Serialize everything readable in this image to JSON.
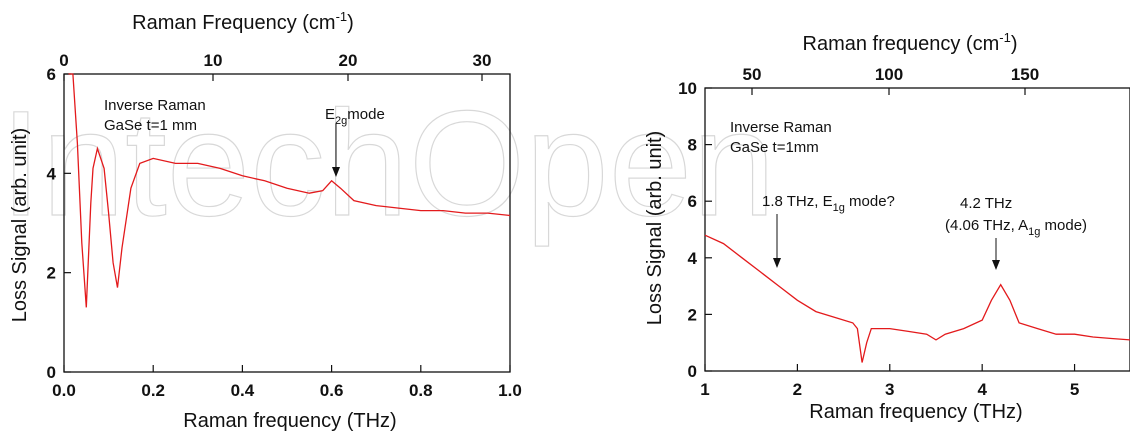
{
  "watermark": "IntechOpen",
  "chart_data": [
    {
      "type": "line",
      "xlabel": "Raman frequency (THz)",
      "ylabel": "Loss Signal (arb. unit)",
      "top_axis_label": "Raman Frequency (cm",
      "top_axis_label_sup": "-1",
      "top_axis_label_end": ")",
      "xlim": [
        0.0,
        1.0
      ],
      "ylim": [
        0,
        6
      ],
      "xticks": [
        "0.0",
        "0.2",
        "0.4",
        "0.6",
        "0.8",
        "1.0"
      ],
      "yticks": [
        "0",
        "2",
        "4",
        "6"
      ],
      "top_ticks_cm": [
        "0",
        "10",
        "20",
        "30"
      ],
      "annotations": {
        "label_line1": "Inverse Raman",
        "label_line2": "GaSe t=1 mm",
        "peak_main": "E",
        "peak_sub": "2g",
        "peak_end": "mode"
      },
      "series": [
        {
          "x": [
            0.01,
            0.02,
            0.03,
            0.04,
            0.05,
            0.06,
            0.065,
            0.075,
            0.09,
            0.1,
            0.11,
            0.12,
            0.13,
            0.15,
            0.17,
            0.2,
            0.25,
            0.3,
            0.35,
            0.4,
            0.45,
            0.5,
            0.55,
            0.58,
            0.6,
            0.62,
            0.65,
            0.7,
            0.75,
            0.8,
            0.85,
            0.9,
            0.95,
            1.0
          ],
          "y": [
            6.0,
            6.0,
            4.6,
            2.6,
            1.3,
            3.4,
            4.1,
            4.5,
            4.1,
            3.2,
            2.2,
            1.7,
            2.5,
            3.7,
            4.2,
            4.3,
            4.2,
            4.2,
            4.1,
            3.95,
            3.85,
            3.7,
            3.6,
            3.65,
            3.85,
            3.7,
            3.45,
            3.35,
            3.3,
            3.25,
            3.25,
            3.2,
            3.2,
            3.15
          ]
        }
      ]
    },
    {
      "type": "line",
      "xlabel": "Raman frequency (THz)",
      "ylabel": "Loss Signal (arb. unit)",
      "top_axis_label": "Raman frequency (cm",
      "top_axis_label_sup": "-1",
      "top_axis_label_end": ")",
      "xlim": [
        1,
        5.6
      ],
      "ylim": [
        0,
        10
      ],
      "xticks": [
        "1",
        "2",
        "3",
        "4",
        "5"
      ],
      "yticks": [
        "0",
        "2",
        "4",
        "6",
        "8",
        "10"
      ],
      "top_ticks_cm": [
        "50",
        "100",
        "150"
      ],
      "annotations": {
        "label_line1": "Inverse Raman",
        "label_line2": "GaSe t=1mm",
        "peak1_main": "1.8 THz, E",
        "peak1_sub": "1g",
        "peak1_end": " mode?",
        "peak2_line1": "4.2 THz",
        "peak2_main": "(4.06 THz, A",
        "peak2_sub": "1g",
        "peak2_end": " mode)"
      },
      "series": [
        {
          "x": [
            1.0,
            1.2,
            1.4,
            1.6,
            1.8,
            2.0,
            2.2,
            2.4,
            2.6,
            2.65,
            2.7,
            2.75,
            2.8,
            3.0,
            3.2,
            3.4,
            3.5,
            3.6,
            3.8,
            4.0,
            4.1,
            4.2,
            4.3,
            4.4,
            4.6,
            4.8,
            5.0,
            5.2,
            5.4,
            5.6
          ],
          "y": [
            4.8,
            4.5,
            4.0,
            3.5,
            3.0,
            2.5,
            2.1,
            1.9,
            1.7,
            1.5,
            0.3,
            1.0,
            1.5,
            1.5,
            1.4,
            1.3,
            1.1,
            1.3,
            1.5,
            1.8,
            2.5,
            3.05,
            2.5,
            1.7,
            1.5,
            1.3,
            1.3,
            1.2,
            1.15,
            1.1
          ]
        }
      ]
    }
  ]
}
